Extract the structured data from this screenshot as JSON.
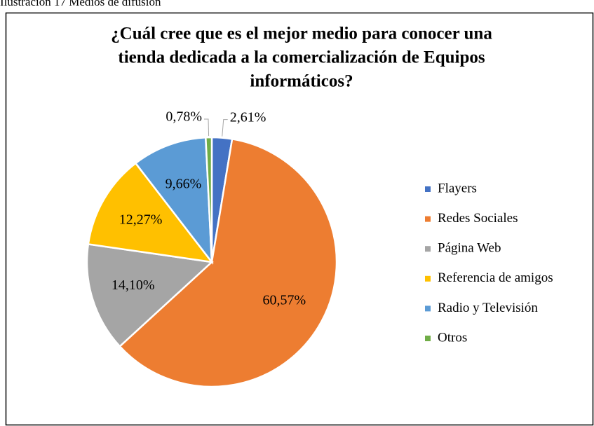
{
  "caption": "Ilustración 17 Medios de difusión",
  "chart_data": {
    "type": "pie",
    "title": [
      "¿Cuál cree que es el mejor medio para conocer una",
      "tienda dedicada a la comercialización de Equipos",
      "informáticos?"
    ],
    "categories": [
      "Flayers",
      "Redes Sociales",
      "Página Web",
      "Referencia de amigos",
      "Radio y Televisión",
      "Otros"
    ],
    "values": [
      2.61,
      60.57,
      14.1,
      12.27,
      9.66,
      0.78
    ],
    "value_labels": [
      "2,61%",
      "60,57%",
      "14,10%",
      "12,27%",
      "9,66%",
      "0,78%"
    ],
    "colors": [
      "#4472c4",
      "#ed7d31",
      "#a5a5a5",
      "#ffc000",
      "#5b9bd5",
      "#70ad47"
    ],
    "legend": "right"
  }
}
